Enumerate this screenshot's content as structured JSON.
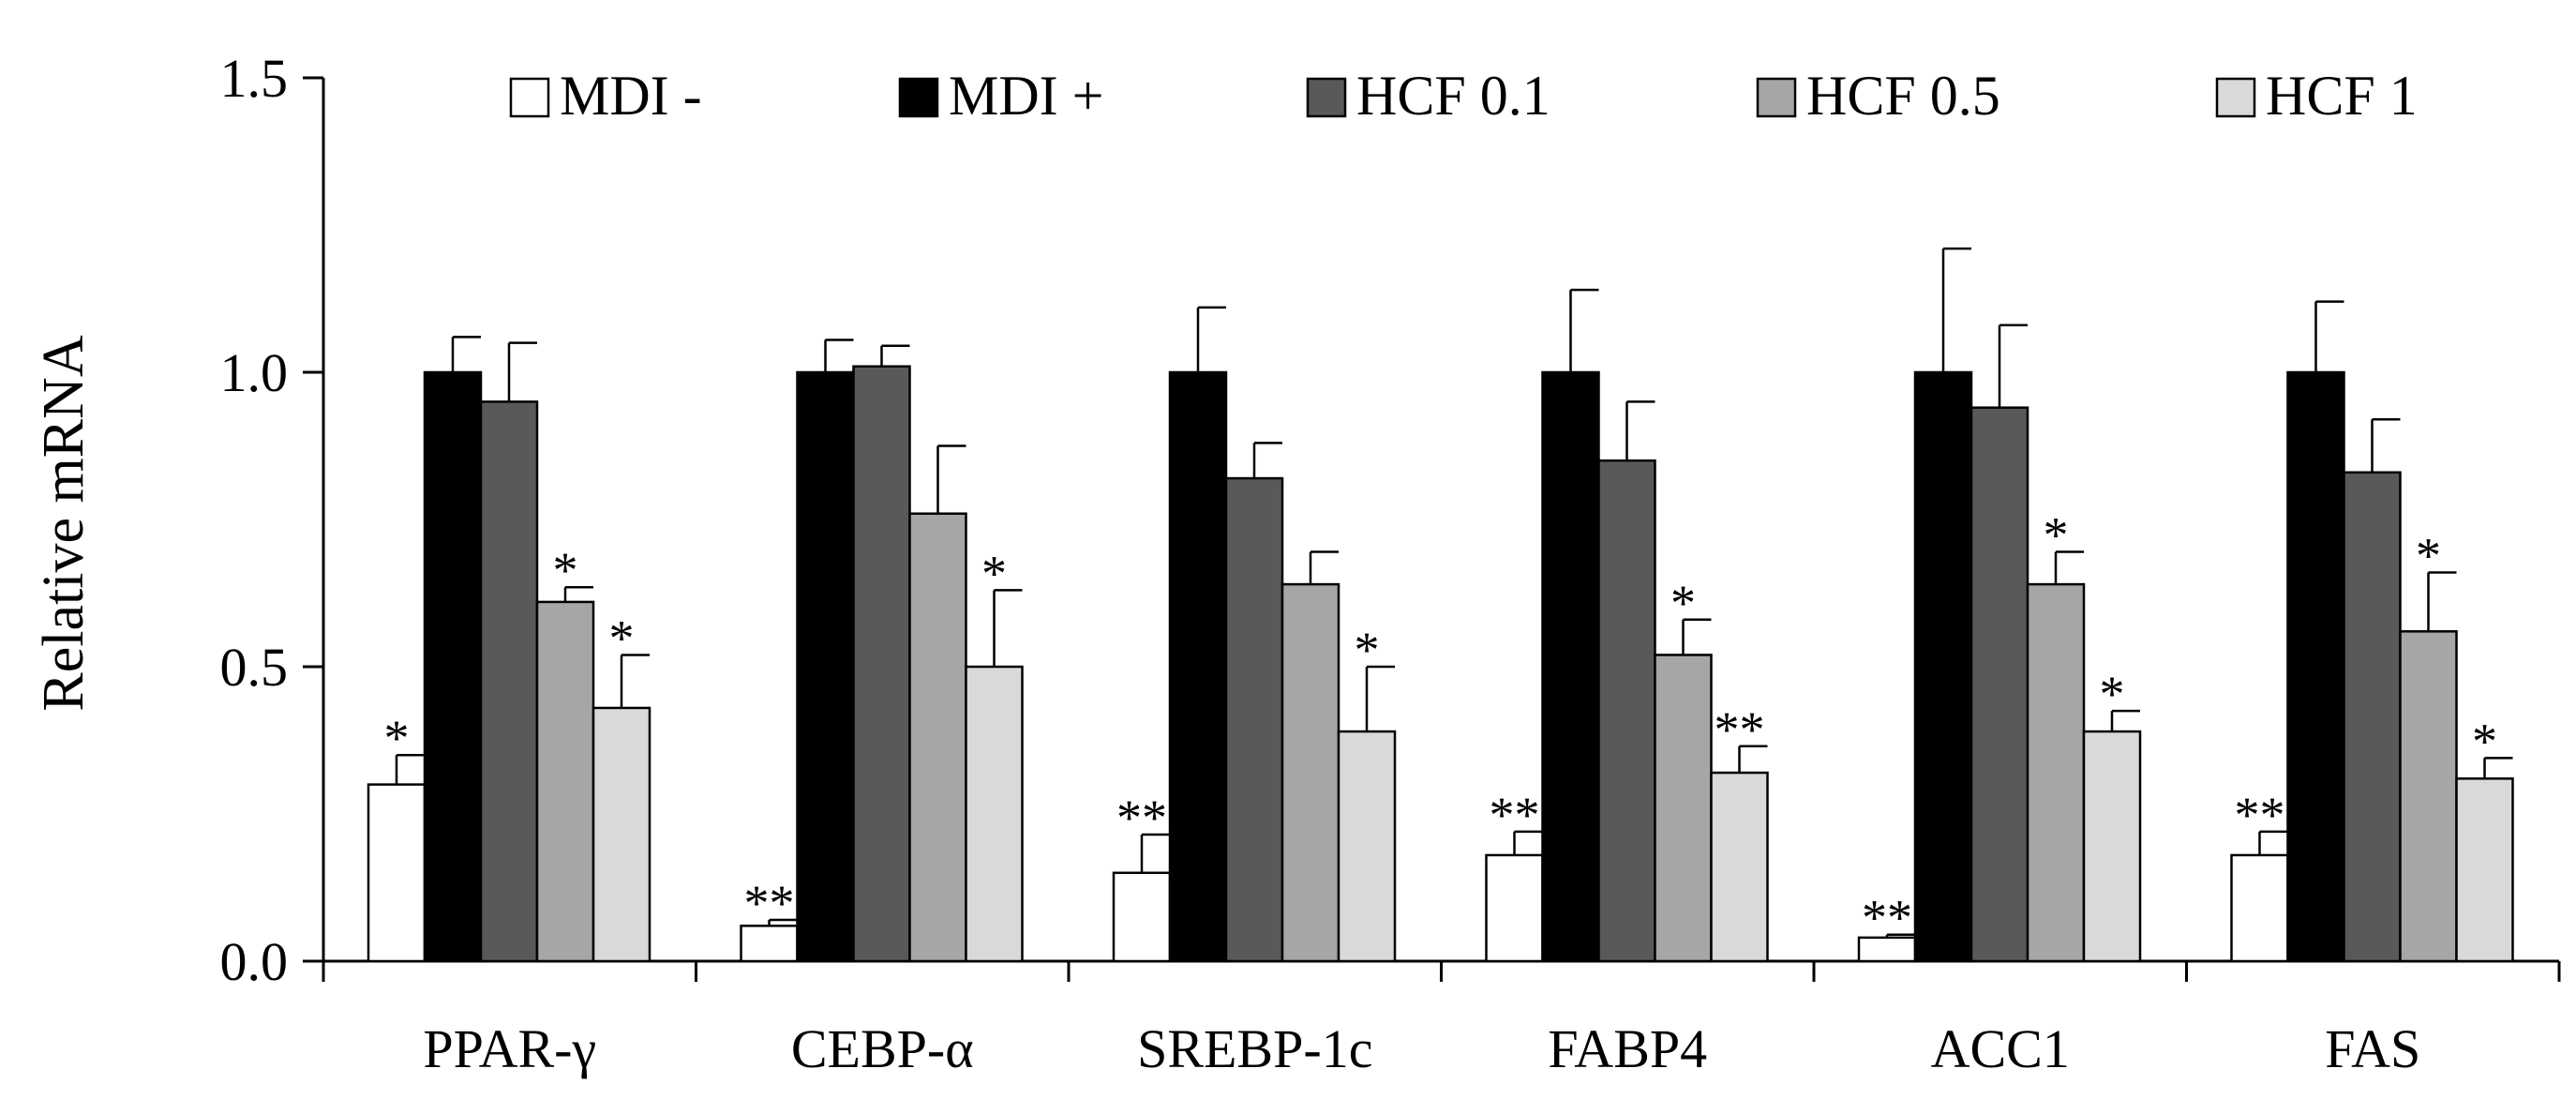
{
  "chart_data": {
    "type": "bar",
    "title": "",
    "xlabel": "",
    "ylabel": "Relative mRNA",
    "ylim": [
      0,
      1.5
    ],
    "yticks": [
      "0.0",
      "0.5",
      "1.0",
      "1.5"
    ],
    "ytick_values": [
      0,
      0.5,
      1.0,
      1.5
    ],
    "legend_position": "top",
    "grid": false,
    "categories": [
      "PPAR-γ",
      "CEBP-α",
      "SREBP-1c",
      "FABP4",
      "ACC1",
      "FAS"
    ],
    "series": [
      {
        "name": "MDI -",
        "color": "#ffffff",
        "values": [
          0.3,
          0.06,
          0.15,
          0.18,
          0.04,
          0.18
        ],
        "errors": [
          0.05,
          0.01,
          0.065,
          0.04,
          0.005,
          0.04
        ],
        "significance": [
          "*",
          "**",
          "**",
          "**",
          "**",
          "**"
        ]
      },
      {
        "name": "MDI +",
        "color": "#000000",
        "values": [
          1.0,
          1.0,
          1.0,
          1.0,
          1.0,
          1.0
        ],
        "errors": [
          0.06,
          0.055,
          0.11,
          0.14,
          0.21,
          0.12
        ],
        "significance": [
          "",
          "",
          "",
          "",
          "",
          ""
        ]
      },
      {
        "name": "HCF 0.1",
        "color": "#595959",
        "values": [
          0.95,
          1.01,
          0.82,
          0.85,
          0.94,
          0.83
        ],
        "errors": [
          0.1,
          0.035,
          0.06,
          0.1,
          0.14,
          0.09
        ],
        "significance": [
          "",
          "",
          "",
          "",
          "",
          ""
        ]
      },
      {
        "name": "HCF 0.5",
        "color": "#a6a6a6",
        "values": [
          0.61,
          0.76,
          0.64,
          0.52,
          0.64,
          0.56
        ],
        "errors": [
          0.025,
          0.115,
          0.055,
          0.06,
          0.055,
          0.1
        ],
        "significance": [
          "*",
          "",
          "",
          "*",
          "*",
          "*"
        ]
      },
      {
        "name": "HCF 1",
        "color": "#d9d9d9",
        "values": [
          0.43,
          0.5,
          0.39,
          0.32,
          0.39,
          0.31
        ],
        "errors": [
          0.09,
          0.13,
          0.11,
          0.045,
          0.035,
          0.035
        ],
        "significance": [
          "*",
          "*",
          "*",
          "**",
          "*",
          "*"
        ]
      }
    ]
  }
}
